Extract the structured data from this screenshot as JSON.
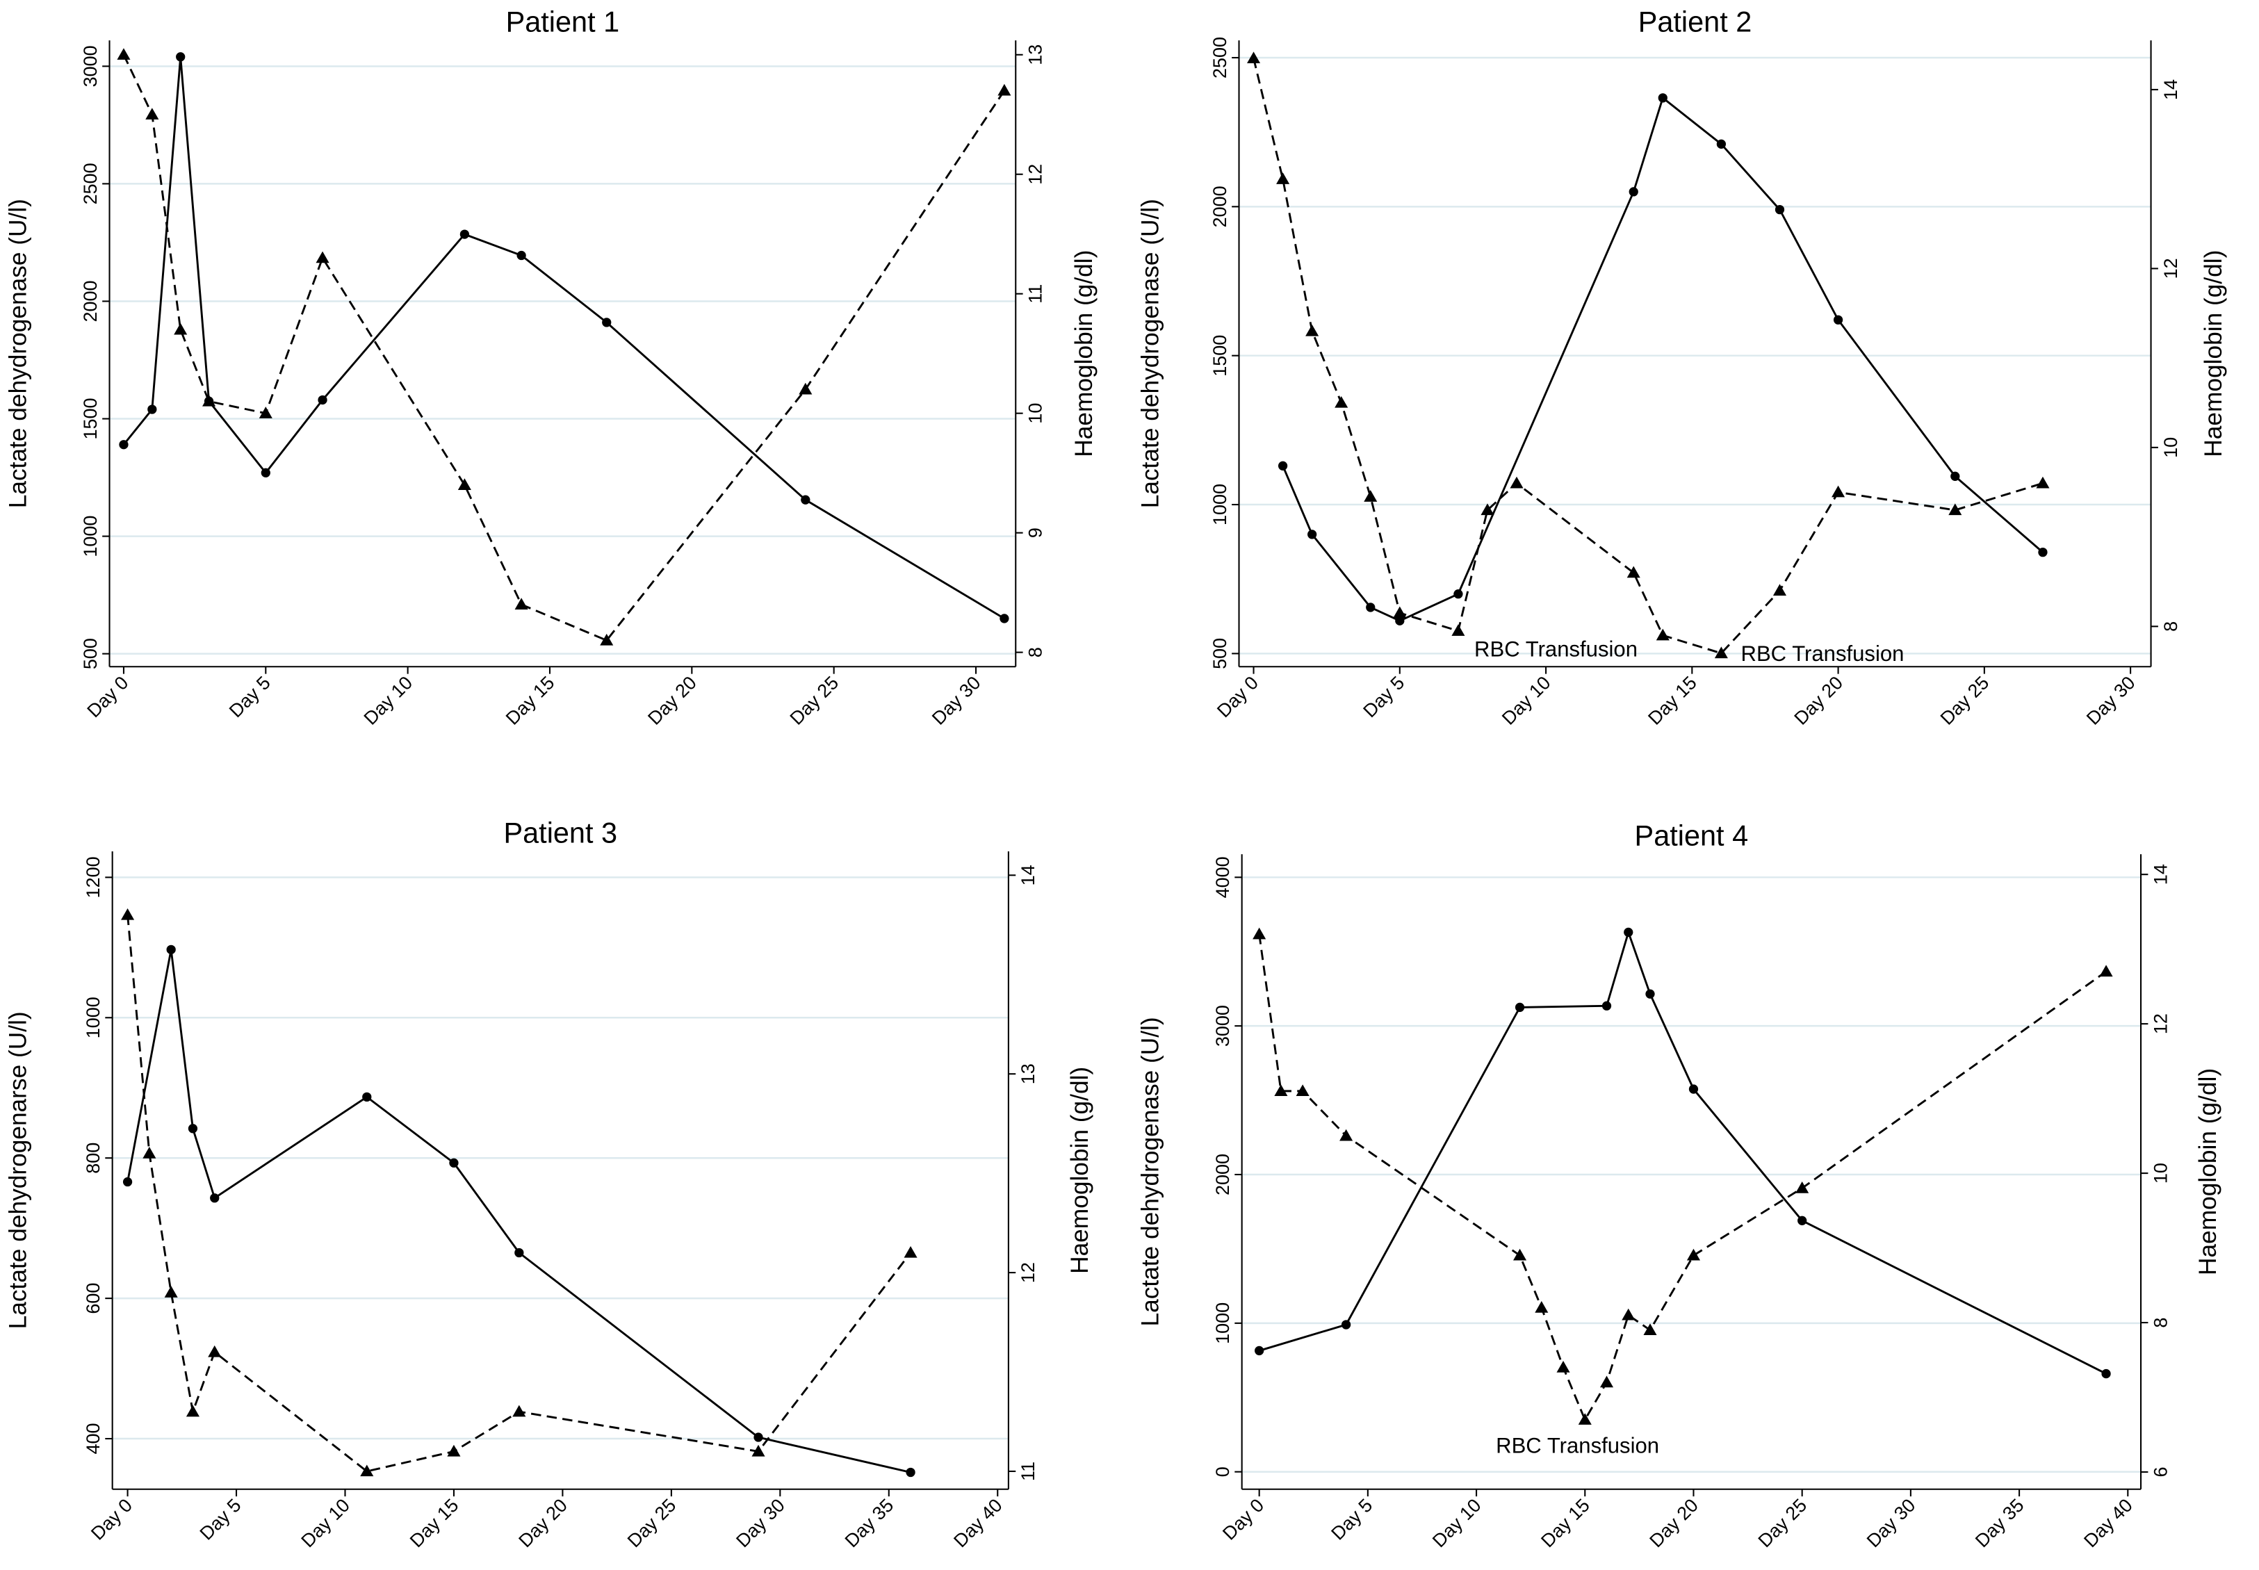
{
  "chart_data": [
    {
      "type": "line",
      "title": "Patient 1",
      "y_label": "Lactate dehydrogenase (U/l)",
      "y2_label": "Haemoglobin (g/dl)",
      "xlim": [
        -0.5,
        31.4
      ],
      "xticks": [
        {
          "value": 0,
          "label": "Day 0"
        },
        {
          "value": 5,
          "label": "Day 5"
        },
        {
          "value": 10,
          "label": "Day 10"
        },
        {
          "value": 15,
          "label": "Day 15"
        },
        {
          "value": 20,
          "label": "Day 20"
        },
        {
          "value": 25,
          "label": "Day 25"
        },
        {
          "value": 30,
          "label": "Day 30"
        }
      ],
      "ylim": [
        445,
        3110
      ],
      "yticks": [
        500,
        1000,
        1500,
        2000,
        2500,
        3000
      ],
      "y2lim": [
        7.88,
        13.12
      ],
      "y2ticks": [
        8,
        9,
        10,
        11,
        12,
        13
      ],
      "grid": true,
      "series": [
        {
          "color": "#000000",
          "line_style": "solid",
          "marker": "circle",
          "x": [
            0,
            1,
            2,
            3,
            5,
            7,
            12,
            14,
            17,
            24,
            31
          ],
          "values": [
            1390,
            1540,
            3040,
            1575,
            1270,
            1580,
            2285,
            2195,
            1910,
            1155,
            650
          ]
        },
        {
          "color": "#000000",
          "line_style": "dashed",
          "marker": "triangle",
          "axis": "y2",
          "x": [
            0,
            1,
            2,
            3,
            5,
            7,
            12,
            14,
            17,
            24,
            31
          ],
          "values": [
            13.0,
            12.5,
            10.7,
            10.1,
            10.0,
            11.3,
            9.4,
            8.4,
            8.1,
            10.2,
            12.7
          ]
        }
      ]
    },
    {
      "type": "line",
      "title": "Patient 2",
      "y_label": "Lactate dehydrogenase (U/l)",
      "y2_label": "Haemoglobin (g/dl)",
      "xlim": [
        -0.5,
        30.7
      ],
      "xticks": [
        {
          "value": 0,
          "label": "Day 0"
        },
        {
          "value": 5,
          "label": "Day 5"
        },
        {
          "value": 10,
          "label": "Day 10"
        },
        {
          "value": 15,
          "label": "Day 15"
        },
        {
          "value": 20,
          "label": "Day 20"
        },
        {
          "value": 25,
          "label": "Day 25"
        },
        {
          "value": 30,
          "label": "Day 30"
        }
      ],
      "ylim": [
        456,
        2558
      ],
      "yticks": [
        500,
        1000,
        1500,
        2000,
        2500
      ],
      "y2lim": [
        7.55,
        14.55
      ],
      "y2ticks": [
        8,
        10,
        12,
        14
      ],
      "grid": true,
      "annotations": [
        "RBC Transfusion",
        "RBC Transfusion"
      ],
      "series": [
        {
          "color": "#000000",
          "line_style": "solid",
          "marker": "circle",
          "x": [
            1,
            2,
            4,
            5,
            7,
            13,
            14,
            16,
            18,
            20,
            24,
            27
          ],
          "values": [
            1130,
            900,
            655,
            610,
            700,
            2050,
            2365,
            2210,
            1990,
            1620,
            1095,
            840
          ]
        },
        {
          "color": "#000000",
          "line_style": "dashed",
          "marker": "triangle",
          "axis": "y2",
          "x": [
            0,
            1,
            2,
            3,
            4,
            5,
            7,
            8,
            9,
            13,
            14,
            16,
            18,
            20,
            24,
            27
          ],
          "values": [
            14.35,
            13.0,
            11.3,
            10.5,
            9.45,
            8.15,
            7.95,
            9.3,
            9.6,
            8.6,
            7.9,
            7.7,
            8.4,
            9.5,
            9.3,
            9.6
          ]
        }
      ]
    },
    {
      "type": "line",
      "title": "Patient 3",
      "y_label": "Lactate dehydrogenarse (U/l)",
      "y2_label": "Haemoglobin (g/dl)",
      "xlim": [
        -0.7,
        40.5
      ],
      "xticks": [
        {
          "value": 0,
          "label": "Day 0"
        },
        {
          "value": 5,
          "label": "Day 5"
        },
        {
          "value": 10,
          "label": "Day 10"
        },
        {
          "value": 15,
          "label": "Day 15"
        },
        {
          "value": 20,
          "label": "Day 20"
        },
        {
          "value": 25,
          "label": "Day 25"
        },
        {
          "value": 30,
          "label": "Day 30"
        },
        {
          "value": 35,
          "label": "Day 35"
        },
        {
          "value": 40,
          "label": "Day 40"
        }
      ],
      "ylim": [
        328,
        1237
      ],
      "yticks": [
        400,
        600,
        800,
        1000,
        1200
      ],
      "y2lim": [
        10.91,
        14.12
      ],
      "y2ticks": [
        11,
        12,
        13,
        14
      ],
      "grid": true,
      "series": [
        {
          "color": "#000000",
          "line_style": "solid",
          "marker": "circle",
          "x": [
            0,
            2,
            3,
            4,
            11,
            15,
            18,
            29,
            36
          ],
          "values": [
            766,
            1097,
            842,
            743,
            887,
            793,
            665,
            402,
            352
          ]
        },
        {
          "color": "#000000",
          "line_style": "dashed",
          "marker": "triangle",
          "axis": "y2",
          "x": [
            0,
            1,
            2,
            3,
            4,
            11,
            15,
            18,
            29,
            36
          ],
          "values": [
            13.8,
            12.6,
            11.9,
            11.3,
            11.6,
            11.0,
            11.1,
            11.3,
            11.1,
            12.1
          ]
        }
      ]
    },
    {
      "type": "line",
      "title": "Patient 4",
      "y_label": "Lactate dehydrogenase (U/l)",
      "y2_label": "Haemoglobin (g/dl)",
      "xlim": [
        -0.8,
        40.6
      ],
      "xticks": [
        {
          "value": 0,
          "label": "Day 0"
        },
        {
          "value": 5,
          "label": "Day 5"
        },
        {
          "value": 10,
          "label": "Day 10"
        },
        {
          "value": 15,
          "label": "Day 15"
        },
        {
          "value": 20,
          "label": "Day 20"
        },
        {
          "value": 25,
          "label": "Day 25"
        },
        {
          "value": 30,
          "label": "Day 30"
        },
        {
          "value": 35,
          "label": "Day 35"
        },
        {
          "value": 40,
          "label": "Day 40"
        }
      ],
      "ylim": [
        -117,
        4155
      ],
      "yticks": [
        0,
        1000,
        2000,
        3000,
        4000
      ],
      "y2lim": [
        5.77,
        14.27
      ],
      "y2ticks": [
        6,
        8,
        10,
        12,
        14
      ],
      "grid": true,
      "annotations": [
        "RBC Transfusion"
      ],
      "series": [
        {
          "color": "#000000",
          "line_style": "solid",
          "marker": "circle",
          "x": [
            0,
            4,
            12,
            16,
            17,
            18,
            20,
            25,
            39
          ],
          "values": [
            815,
            990,
            3125,
            3135,
            3630,
            3215,
            2575,
            1690,
            660
          ]
        },
        {
          "color": "#000000",
          "line_style": "dashed",
          "marker": "triangle",
          "axis": "y2",
          "x": [
            0,
            1,
            2,
            4,
            12,
            13,
            14,
            15,
            16,
            17,
            18,
            20,
            25,
            39
          ],
          "values": [
            13.2,
            11.1,
            11.1,
            10.5,
            8.9,
            8.2,
            7.4,
            6.7,
            7.2,
            8.1,
            7.9,
            8.9,
            9.8,
            12.7
          ]
        }
      ]
    }
  ]
}
